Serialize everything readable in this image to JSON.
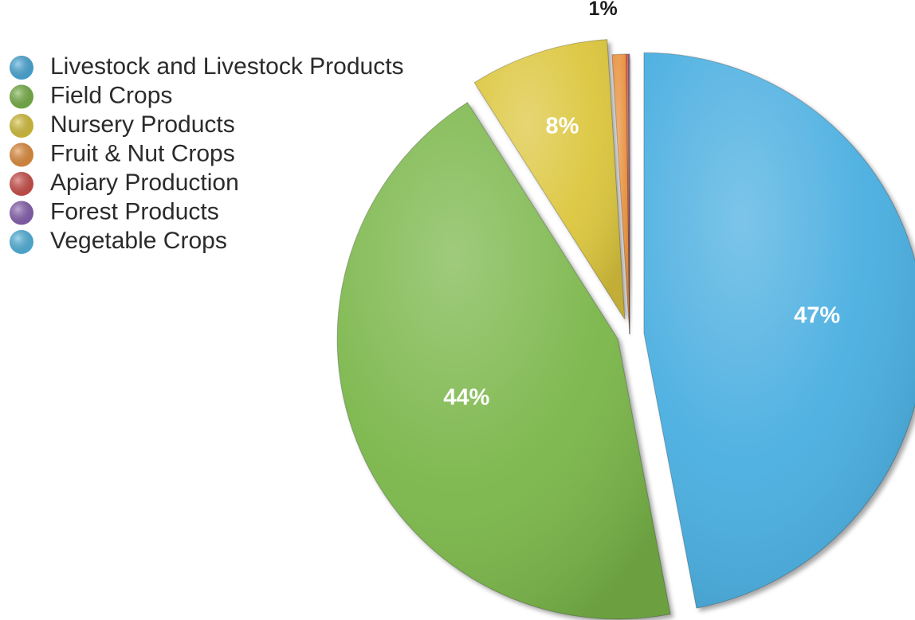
{
  "chart_data": {
    "type": "pie",
    "categories": [
      "Livestock and Livestock Products",
      "Field Crops",
      "Nursery Products",
      "Fruit & Nut Crops",
      "Apiary Production",
      "Forest Products",
      "Vegetable Crops"
    ],
    "values": [
      47,
      44,
      8,
      0.8,
      0.15,
      0.03,
      0.02
    ],
    "data_labels": [
      "47%",
      "44%",
      "8%",
      "1%",
      "",
      "",
      ""
    ],
    "colors": [
      "#4aaee0",
      "#7ab648",
      "#dcc63c",
      "#e8913e",
      "#d2504a",
      "#8a62b4",
      "#52b8e4"
    ],
    "exploded": true,
    "start_angle_deg": 0,
    "direction": "clockwise",
    "legend_position": "top-left",
    "title": ""
  }
}
